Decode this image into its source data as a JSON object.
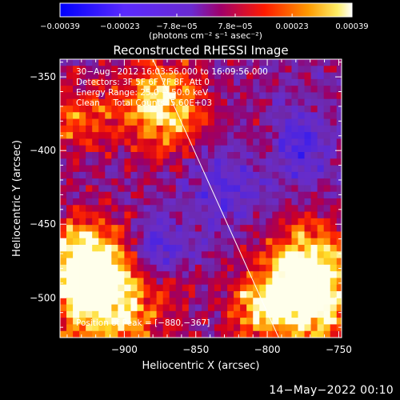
{
  "chart_data": {
    "type": "heatmap",
    "title": "Reconstructed RHESSI Image",
    "xlabel": "Heliocentric X (arcsec)",
    "ylabel": "Heliocentric Y (arcsec)",
    "xlim": [
      -945,
      -748
    ],
    "ylim": [
      -527,
      -338
    ],
    "x_ticks": [
      -900,
      -850,
      -800,
      -750
    ],
    "y_ticks": [
      -350,
      -400,
      -450,
      -500
    ],
    "x_tick_labels": [
      "−900",
      "−850",
      "−800",
      "−750"
    ],
    "y_tick_labels": [
      "−350",
      "−400",
      "−450",
      "−500"
    ],
    "colorbar": {
      "colormap": "blue-purple-red-yellow-white",
      "range": [
        -0.00039,
        0.00039
      ],
      "ticks": [
        -0.00039,
        -0.00023,
        -7.8e-05,
        7.8e-05,
        0.00023,
        0.00039
      ],
      "tick_labels": [
        "−0.00039",
        "−0.00023",
        "−7.8e−05",
        "7.8e−05",
        "0.00023",
        "0.00039"
      ],
      "unit_label": "(photons cm⁻² s⁻¹ asec⁻²)"
    },
    "annotations": [
      "30−Aug−2012 16:03:56.000 to 16:09:56.000",
      "Detectors: 3F 5F 6F 7F 8F, Att 0",
      "Energy Range: 25.0 − 50.0 keV",
      "Clean     Total Counts: 5.60E+03"
    ],
    "peak_label": "Position of Peak = [−880,−367]",
    "peak_position": [
      -880,
      -367
    ],
    "limb_line": {
      "points": [
        [
          -880,
          -338
        ],
        [
          -792,
          -527
        ]
      ],
      "color": "#ffffff"
    },
    "hot_regions": [
      {
        "x": -875,
        "y": -368,
        "intensity": 0.95,
        "radius": 22
      },
      {
        "x": -915,
        "y": -500,
        "intensity": 1.0,
        "radius": 28
      },
      {
        "x": -930,
        "y": -470,
        "intensity": 0.75,
        "radius": 20
      },
      {
        "x": -775,
        "y": -475,
        "intensity": 0.9,
        "radius": 22
      },
      {
        "x": -770,
        "y": -505,
        "intensity": 0.85,
        "radius": 20
      },
      {
        "x": -810,
        "y": -505,
        "intensity": 0.7,
        "radius": 16
      },
      {
        "x": -935,
        "y": -375,
        "intensity": 0.55,
        "radius": 18
      },
      {
        "x": -800,
        "y": -395,
        "intensity": 0.45,
        "radius": 14
      }
    ],
    "cold_regions": [
      {
        "x": -785,
        "y": -395,
        "intensity": -0.7,
        "radius": 16
      },
      {
        "x": -880,
        "y": -465,
        "intensity": -0.6,
        "radius": 14
      },
      {
        "x": -830,
        "y": -420,
        "intensity": -0.4,
        "radius": 20
      }
    ]
  },
  "footer": {
    "timestamp": "14−May−2022 00:10"
  }
}
